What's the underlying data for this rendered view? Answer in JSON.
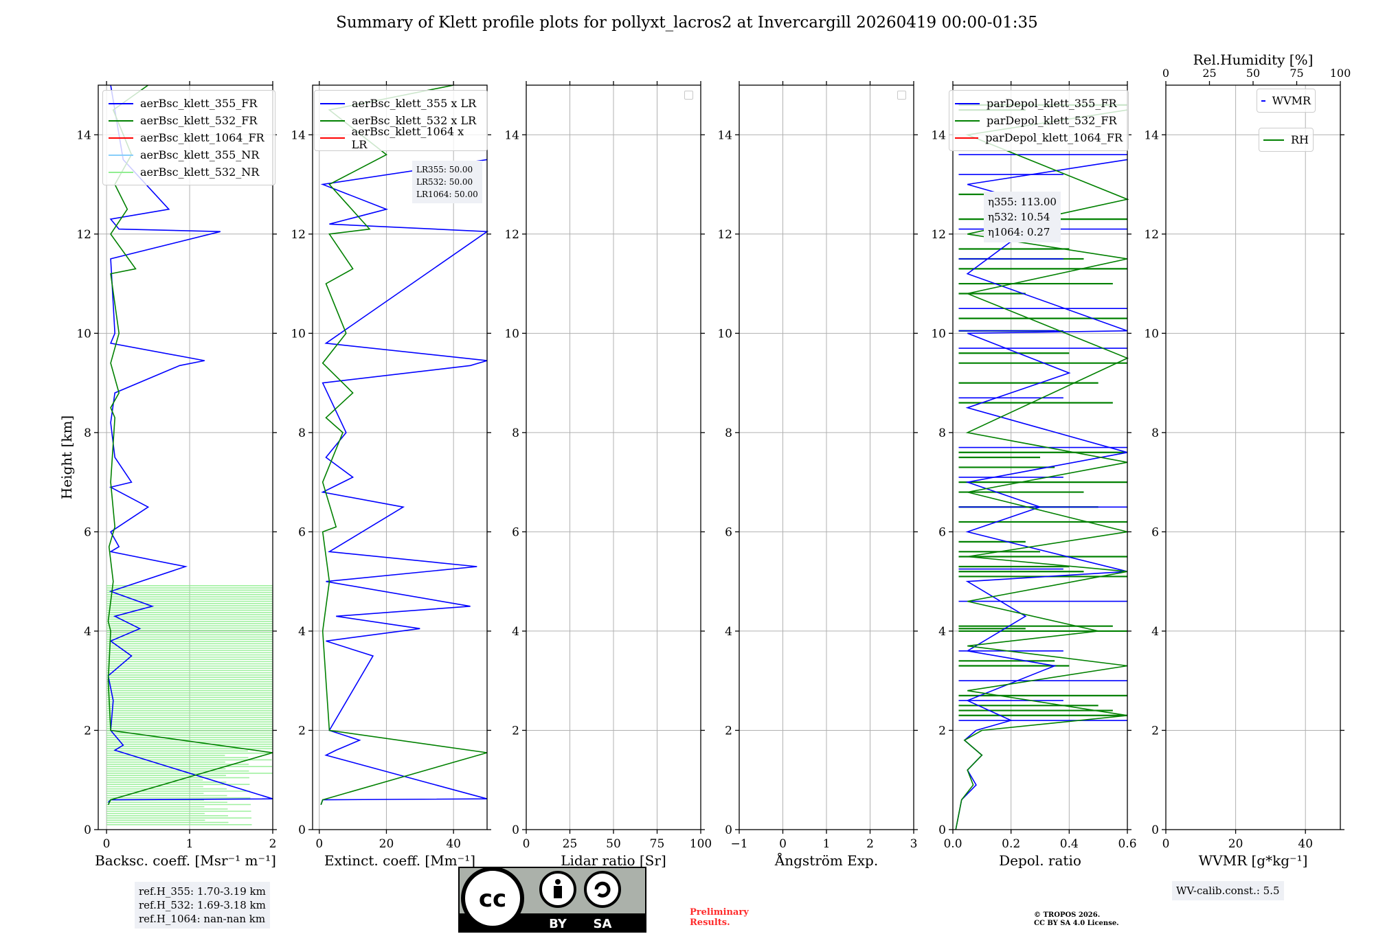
{
  "figure": {
    "title": "Summary of Klett profile plots for pollyxt_lacros2 at Invercargill 20260419 00:00-01:35",
    "ylabel": "Height [km]"
  },
  "colors": {
    "c355": "#0000ff",
    "c532": "#008000",
    "c1064": "#ff0000",
    "c355nr": "#87cefa",
    "c532nr": "#90ee90",
    "grid": "#b0b0b0"
  },
  "chart_data": [
    {
      "type": "line",
      "title": "",
      "xlabel": "Backsc. coeff. [Msr⁻¹ m⁻¹]",
      "ylabel": "Height [km]",
      "xlim": [
        -0.1,
        2.0
      ],
      "ylim": [
        0,
        15
      ],
      "xticks": [
        "0",
        "1",
        "2"
      ],
      "xtick_values": [
        0,
        1,
        2
      ],
      "yticks": [
        "0",
        "2",
        "4",
        "6",
        "8",
        "10",
        "12",
        "14"
      ],
      "legend": [
        "aerBsc_klett_355_FR",
        "aerBsc_klett_532_FR",
        "aerBsc_klett_1064_FR",
        "aerBsc_klett_355_NR",
        "aerBsc_klett_532_NR"
      ],
      "series": [
        {
          "name": "aerBsc_klett_355_FR",
          "color": "#0000ff",
          "x": [
            0.02,
            0.05,
            2.0,
            0.1,
            0.2,
            0.05,
            0.08,
            0.02,
            0.3,
            0.05,
            0.4,
            0.1,
            0.55,
            0.05,
            0.95,
            0.05,
            0.15,
            0.05,
            0.5,
            0.05,
            0.3,
            0.1,
            0.05,
            0.1,
            0.88,
            1.18,
            0.05,
            0.1,
            0.05,
            1.37,
            0.15,
            0.05,
            0.75,
            0.2,
            0.05
          ],
          "y": [
            0.55,
            0.6,
            0.62,
            1.6,
            1.7,
            2.0,
            2.6,
            3.1,
            3.5,
            3.8,
            4.05,
            4.3,
            4.5,
            4.8,
            5.3,
            5.6,
            5.7,
            6.0,
            6.5,
            6.9,
            7.0,
            7.5,
            8.2,
            8.8,
            9.35,
            9.45,
            9.8,
            10.0,
            11.5,
            12.05,
            12.1,
            12.3,
            12.5,
            13.5,
            15.0
          ]
        },
        {
          "name": "aerBsc_klett_532_FR",
          "color": "#008000",
          "x": [
            0.02,
            0.05,
            2.0,
            0.05,
            0.02,
            0.05,
            0.02,
            0.08,
            0.03,
            0.1,
            0.05,
            0.1,
            0.05,
            0.15,
            0.05,
            0.15,
            0.05,
            0.35,
            0.05,
            0.25,
            0.1,
            0.3,
            0.08,
            0.5
          ],
          "y": [
            0.5,
            0.6,
            1.55,
            2.0,
            3.0,
            4.0,
            4.2,
            5.0,
            5.7,
            6.1,
            7.0,
            8.3,
            8.5,
            8.8,
            9.4,
            10.0,
            11.2,
            11.3,
            12.0,
            12.5,
            13.0,
            13.6,
            14.5,
            15.0
          ]
        }
      ]
    },
    {
      "type": "line",
      "title": "",
      "xlabel": "Extinct. coeff. [Mm⁻¹]",
      "ylabel": "",
      "xlim": [
        -2,
        50
      ],
      "ylim": [
        0,
        15
      ],
      "xticks": [
        "0",
        "20",
        "40"
      ],
      "xtick_values": [
        0,
        20,
        40
      ],
      "yticks": [
        "0",
        "2",
        "4",
        "6",
        "8",
        "10",
        "12",
        "14"
      ],
      "legend": [
        "aerBsc_klett_355 x LR",
        "aerBsc_klett_532 x LR",
        "aerBsc_klett_1064 x LR"
      ],
      "annotation": [
        "LR355: 50.00",
        "LR532: 50.00",
        "LR1064: 50.00"
      ],
      "series": [
        {
          "name": "aerBsc_klett_355 x LR",
          "color": "#0000ff",
          "x": [
            0.5,
            1,
            50,
            2,
            5,
            12,
            3,
            16,
            2,
            30,
            5,
            45,
            2,
            47,
            3,
            25,
            1,
            10,
            2,
            8,
            1,
            45,
            50,
            2,
            50,
            3,
            20,
            1,
            50
          ],
          "y": [
            0.5,
            0.6,
            0.62,
            1.5,
            1.6,
            1.8,
            2.0,
            3.5,
            3.8,
            4.05,
            4.3,
            4.5,
            5.0,
            5.3,
            5.6,
            6.5,
            6.8,
            7.1,
            7.5,
            8.0,
            9.0,
            9.35,
            9.45,
            9.8,
            12.05,
            12.2,
            12.5,
            13.0,
            13.5
          ]
        },
        {
          "name": "aerBsc_klett_532 x LR",
          "color": "#008000",
          "x": [
            0.5,
            1,
            50,
            3,
            2,
            1,
            3,
            1,
            5,
            1,
            7,
            2,
            10,
            1,
            8,
            2,
            10,
            3,
            15,
            3,
            20,
            3,
            40
          ],
          "y": [
            0.5,
            0.6,
            1.55,
            2.0,
            3.0,
            4.0,
            5.0,
            6.0,
            6.1,
            7.0,
            8.0,
            8.3,
            8.8,
            9.4,
            10.0,
            11.0,
            11.3,
            12.0,
            12.1,
            13.0,
            13.6,
            14.5,
            15.0
          ]
        }
      ]
    },
    {
      "type": "line",
      "title": "",
      "xlabel": "Lidar ratio [Sr]",
      "ylabel": "",
      "xlim": [
        0,
        100
      ],
      "ylim": [
        0,
        15
      ],
      "xticks": [
        "0",
        "25",
        "50",
        "75",
        "100"
      ],
      "xtick_values": [
        0,
        25,
        50,
        75,
        100
      ],
      "yticks": [
        "0",
        "2",
        "4",
        "6",
        "8",
        "10",
        "12",
        "14"
      ],
      "series": []
    },
    {
      "type": "line",
      "title": "",
      "xlabel": "Ångström Exp.",
      "ylabel": "",
      "xlim": [
        -1,
        3
      ],
      "ylim": [
        0,
        15
      ],
      "xticks": [
        "−1",
        "0",
        "1",
        "2",
        "3"
      ],
      "xtick_values": [
        -1,
        0,
        1,
        2,
        3
      ],
      "yticks": [
        "0",
        "2",
        "4",
        "6",
        "8",
        "10",
        "12",
        "14"
      ],
      "series": []
    },
    {
      "type": "line",
      "title": "",
      "xlabel": "Depol. ratio",
      "ylabel": "",
      "xlim": [
        0,
        0.6
      ],
      "ylim": [
        0,
        15
      ],
      "xticks": [
        "0.0",
        "0.2",
        "0.4",
        "0.6"
      ],
      "xtick_values": [
        0,
        0.2,
        0.4,
        0.6
      ],
      "yticks": [
        "0",
        "2",
        "4",
        "6",
        "8",
        "10",
        "12",
        "14"
      ],
      "legend": [
        "parDepol_klett_355_FR",
        "parDepol_klett_532_FR",
        "parDepol_klett_1064_FR"
      ],
      "annotation": [
        "η355: 113.00",
        "η532: 10.54",
        "η1064: 0.27"
      ],
      "series": [
        {
          "name": "parDepol_klett_355_FR",
          "color": "#0000ff",
          "x": [
            0.01,
            0.03,
            0.08,
            0.05,
            0.1,
            0.04,
            0.08,
            0.2,
            0.05,
            0.35,
            0.05,
            0.25,
            0.05,
            0.6,
            0.05,
            0.3,
            0.05,
            0.6,
            0.05,
            0.4,
            0.05,
            0.6,
            0.05,
            0.35,
            0.05,
            0.6
          ],
          "y": [
            0.0,
            0.6,
            0.9,
            1.2,
            1.5,
            1.8,
            2.0,
            2.2,
            2.6,
            3.3,
            3.6,
            4.3,
            5.0,
            5.2,
            6.0,
            6.5,
            7.0,
            7.6,
            8.5,
            9.2,
            10.0,
            10.05,
            11.2,
            12.5,
            13.0,
            13.5
          ]
        },
        {
          "name": "parDepol_klett_532_FR",
          "color": "#008000",
          "x": [
            0.01,
            0.03,
            0.07,
            0.05,
            0.1,
            0.04,
            0.1,
            0.6,
            0.05,
            0.6,
            0.05,
            0.5,
            0.05,
            0.6,
            0.05,
            0.6,
            0.05,
            0.6,
            0.05,
            0.6,
            0.05,
            0.6,
            0.05,
            0.6,
            0.05,
            0.6
          ],
          "y": [
            0.0,
            0.6,
            0.9,
            1.2,
            1.5,
            1.8,
            2.0,
            2.3,
            2.8,
            3.3,
            3.7,
            4.0,
            4.6,
            5.2,
            5.5,
            6.0,
            6.8,
            7.4,
            8.0,
            9.5,
            10.8,
            11.5,
            12.0,
            12.7,
            14.0,
            14.5
          ]
        }
      ]
    },
    {
      "type": "line",
      "title": "",
      "xlabel": "WVMR [g*kg⁻¹]",
      "xlabel_top": "Rel.Humidity [%]",
      "ylabel": "",
      "xlim": [
        0,
        50
      ],
      "ylim": [
        0,
        15
      ],
      "xticks": [
        "0",
        "20",
        "40"
      ],
      "xtick_values": [
        0,
        20,
        40
      ],
      "xlim_top": [
        0,
        100
      ],
      "xticks_top": [
        "0",
        "25",
        "50",
        "75",
        "100"
      ],
      "xtick_values_top": [
        0,
        25,
        50,
        75,
        100
      ],
      "yticks": [
        "0",
        "2",
        "4",
        "6",
        "8",
        "10",
        "12",
        "14"
      ],
      "legend": [
        "WVMR",
        "RH"
      ],
      "series": []
    }
  ],
  "annotations": {
    "ref_h": [
      "ref.H_355: 1.70-3.19 km",
      "ref.H_532: 1.69-3.18 km",
      "ref.H_1064: nan-nan km"
    ],
    "wv_calib": "WV-calib.const.: 5.5",
    "preliminary": [
      "Preliminary",
      "Results."
    ],
    "copyright": [
      "© TROPOS 2026.",
      "CC BY SA 4.0 License."
    ],
    "cc_logo_text": [
      "cc",
      "BY",
      "SA"
    ]
  }
}
